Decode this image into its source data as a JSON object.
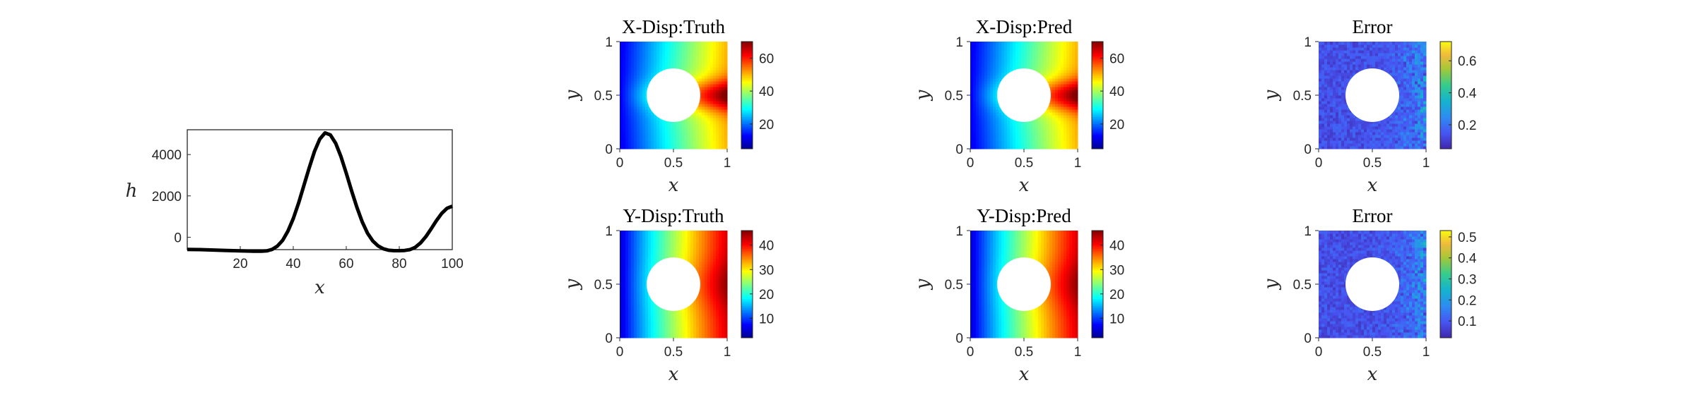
{
  "chart_data": [
    {
      "type": "line",
      "title": "",
      "xlabel": "x",
      "ylabel": "h",
      "xlim": [
        0,
        100
      ],
      "ylim": [
        -600,
        5200
      ],
      "xticks": [
        20,
        40,
        60,
        80,
        100
      ],
      "yticks": [
        0,
        2000,
        4000
      ],
      "xtick_labels": [
        "20",
        "40",
        "60",
        "80",
        "100"
      ],
      "ytick_labels": [
        "0",
        "2000",
        "4000"
      ],
      "grid": false,
      "series": [
        {
          "color": "#000000",
          "x": [
            0,
            5,
            10,
            15,
            20,
            25,
            28,
            30,
            32,
            34,
            36,
            38,
            40,
            42,
            44,
            46,
            48,
            50,
            52,
            54,
            56,
            58,
            60,
            62,
            64,
            66,
            68,
            70,
            72,
            74,
            76,
            78,
            80,
            82,
            84,
            86,
            88,
            90,
            92,
            94,
            96,
            98,
            100
          ],
          "y": [
            -590,
            -600,
            -620,
            -640,
            -660,
            -680,
            -680,
            -660,
            -590,
            -430,
            -150,
            300,
            900,
            1650,
            2500,
            3350,
            4150,
            4750,
            5050,
            4950,
            4550,
            3900,
            3100,
            2250,
            1450,
            750,
            200,
            -180,
            -420,
            -560,
            -630,
            -650,
            -650,
            -640,
            -600,
            -490,
            -280,
            20,
            400,
            800,
            1150,
            1400,
            1500
          ]
        }
      ]
    },
    {
      "type": "heatmap",
      "title": "X-Disp:Truth",
      "xlabel": "x",
      "ylabel": "y",
      "xlim": [
        0,
        1
      ],
      "ylim": [
        0,
        1
      ],
      "xtick_labels": [
        "0",
        "0.5",
        "1"
      ],
      "ytick_labels": [
        "0",
        "0.5",
        "1"
      ],
      "colormap": "jet",
      "clim": [
        5,
        70
      ],
      "colorbar_ticks": [
        20,
        40,
        60
      ],
      "colorbar_tick_labels": [
        "20",
        "40",
        "60"
      ],
      "hole": {
        "cx": 0.5,
        "cy": 0.5,
        "r": 0.25
      }
    },
    {
      "type": "heatmap",
      "title": "X-Disp:Pred",
      "xlabel": "x",
      "ylabel": "y",
      "xlim": [
        0,
        1
      ],
      "ylim": [
        0,
        1
      ],
      "xtick_labels": [
        "0",
        "0.5",
        "1"
      ],
      "ytick_labels": [
        "0",
        "0.5",
        "1"
      ],
      "colormap": "jet",
      "clim": [
        5,
        70
      ],
      "colorbar_ticks": [
        20,
        40,
        60
      ],
      "colorbar_tick_labels": [
        "20",
        "40",
        "60"
      ],
      "hole": {
        "cx": 0.5,
        "cy": 0.5,
        "r": 0.25
      }
    },
    {
      "type": "heatmap",
      "title": "Error",
      "xlabel": "x",
      "ylabel": "y",
      "xlim": [
        0,
        1
      ],
      "ylim": [
        0,
        1
      ],
      "xtick_labels": [
        "0",
        "0.5",
        "1"
      ],
      "ytick_labels": [
        "0",
        "0.5",
        "1"
      ],
      "colormap": "parula",
      "clim": [
        0.05,
        0.72
      ],
      "colorbar_ticks": [
        0.2,
        0.4,
        0.6
      ],
      "colorbar_tick_labels": [
        "0.2",
        "0.4",
        "0.6"
      ],
      "hole": {
        "cx": 0.5,
        "cy": 0.5,
        "r": 0.25
      }
    },
    {
      "type": "heatmap",
      "title": "Y-Disp:Truth",
      "xlabel": "x",
      "ylabel": "y",
      "xlim": [
        0,
        1
      ],
      "ylim": [
        0,
        1
      ],
      "xtick_labels": [
        "0",
        "0.5",
        "1"
      ],
      "ytick_labels": [
        "0",
        "0.5",
        "1"
      ],
      "colormap": "jet",
      "clim": [
        2,
        46
      ],
      "colorbar_ticks": [
        10,
        20,
        30,
        40
      ],
      "colorbar_tick_labels": [
        "10",
        "20",
        "30",
        "40"
      ],
      "hole": {
        "cx": 0.5,
        "cy": 0.5,
        "r": 0.25
      }
    },
    {
      "type": "heatmap",
      "title": "Y-Disp:Pred",
      "xlabel": "x",
      "ylabel": "y",
      "xlim": [
        0,
        1
      ],
      "ylim": [
        0,
        1
      ],
      "xtick_labels": [
        "0",
        "0.5",
        "1"
      ],
      "ytick_labels": [
        "0",
        "0.5",
        "1"
      ],
      "colormap": "jet",
      "clim": [
        2,
        46
      ],
      "colorbar_ticks": [
        10,
        20,
        30,
        40
      ],
      "colorbar_tick_labels": [
        "10",
        "20",
        "30",
        "40"
      ],
      "hole": {
        "cx": 0.5,
        "cy": 0.5,
        "r": 0.25
      }
    },
    {
      "type": "heatmap",
      "title": "Error",
      "xlabel": "x",
      "ylabel": "y",
      "xlim": [
        0,
        1
      ],
      "ylim": [
        0,
        1
      ],
      "xtick_labels": [
        "0",
        "0.5",
        "1"
      ],
      "ytick_labels": [
        "0",
        "0.5",
        "1"
      ],
      "colormap": "parula",
      "clim": [
        0.02,
        0.53
      ],
      "colorbar_ticks": [
        0.1,
        0.2,
        0.3,
        0.4,
        0.5
      ],
      "colorbar_tick_labels": [
        "0.1",
        "0.2",
        "0.3",
        "0.4",
        "0.5"
      ],
      "hole": {
        "cx": 0.5,
        "cy": 0.5,
        "r": 0.25
      }
    }
  ]
}
